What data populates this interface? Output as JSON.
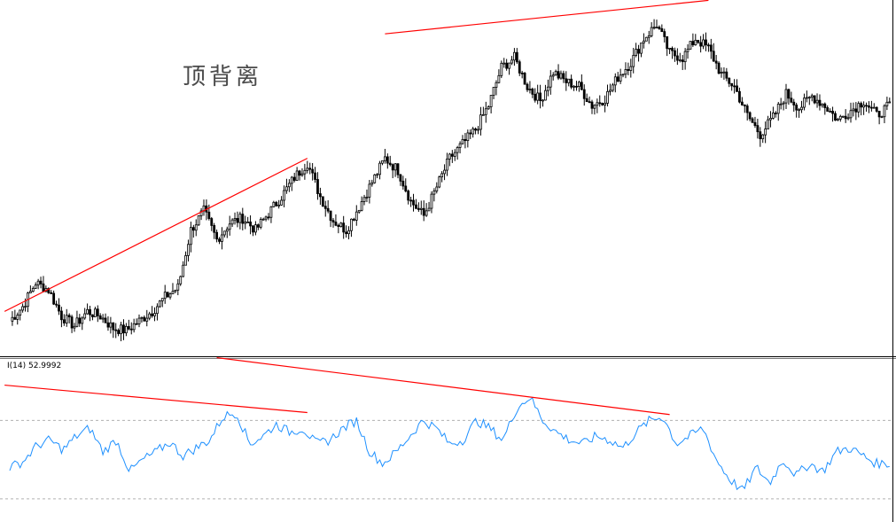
{
  "price_panel": {
    "annotation": "顶背离"
  },
  "rsi_panel": {
    "label": "I(14) 52.9992"
  },
  "colors": {
    "candle_bull_fill": "#ffffff",
    "candle_bear_fill": "#000000",
    "candle_outline": "#000000",
    "divergence_line": "#ff0000",
    "rsi_line": "#1e90ff",
    "rsi_level": "#b0b0b0",
    "separator": "#000000",
    "background": "#ffffff"
  },
  "chart_data": [
    {
      "type": "candlestick",
      "title": "顶背离",
      "price_path": [
        [
          0,
          0.04
        ],
        [
          5,
          0.1
        ],
        [
          10,
          0.2
        ],
        [
          15,
          0.17
        ],
        [
          20,
          0.06
        ],
        [
          25,
          0.02
        ],
        [
          30,
          0.08
        ],
        [
          35,
          0.06
        ],
        [
          40,
          0.01
        ],
        [
          45,
          0.0
        ],
        [
          50,
          0.04
        ],
        [
          55,
          0.08
        ],
        [
          60,
          0.14
        ],
        [
          65,
          0.18
        ],
        [
          70,
          0.42
        ],
        [
          75,
          0.5
        ],
        [
          80,
          0.38
        ],
        [
          85,
          0.45
        ],
        [
          90,
          0.47
        ],
        [
          95,
          0.42
        ],
        [
          100,
          0.49
        ],
        [
          105,
          0.56
        ],
        [
          110,
          0.64
        ],
        [
          115,
          0.7
        ],
        [
          120,
          0.56
        ],
        [
          125,
          0.46
        ],
        [
          130,
          0.42
        ],
        [
          135,
          0.52
        ],
        [
          140,
          0.62
        ],
        [
          145,
          0.72
        ],
        [
          150,
          0.67
        ],
        [
          155,
          0.54
        ],
        [
          160,
          0.48
        ],
        [
          165,
          0.6
        ],
        [
          170,
          0.72
        ],
        [
          175,
          0.78
        ],
        [
          180,
          0.84
        ],
        [
          185,
          0.94
        ],
        [
          190,
          1.1
        ],
        [
          195,
          1.14
        ],
        [
          200,
          1.02
        ],
        [
          205,
          0.96
        ],
        [
          210,
          1.08
        ],
        [
          215,
          1.04
        ],
        [
          220,
          1.02
        ],
        [
          225,
          0.94
        ],
        [
          230,
          0.97
        ],
        [
          235,
          1.06
        ],
        [
          240,
          1.12
        ],
        [
          245,
          1.22
        ],
        [
          250,
          1.28
        ],
        [
          255,
          1.16
        ],
        [
          260,
          1.14
        ],
        [
          265,
          1.22
        ],
        [
          270,
          1.18
        ],
        [
          275,
          1.07
        ],
        [
          280,
          1.02
        ],
        [
          285,
          0.9
        ],
        [
          290,
          0.82
        ],
        [
          295,
          0.89
        ],
        [
          300,
          0.99
        ],
        [
          305,
          0.93
        ],
        [
          310,
          0.98
        ],
        [
          315,
          0.94
        ],
        [
          320,
          0.88
        ],
        [
          325,
          0.92
        ],
        [
          330,
          0.96
        ],
        [
          335,
          0.9
        ],
        [
          340,
          0.94
        ]
      ],
      "trend_lines": [
        {
          "name": "price_divergence_1",
          "points": [
            [
              -2,
              0.08
            ],
            [
              115,
              0.72
            ]
          ]
        },
        {
          "name": "price_divergence_2",
          "points": [
            [
              145,
              1.24
            ],
            [
              270,
              1.38
            ]
          ]
        }
      ]
    },
    {
      "type": "line",
      "series": [
        {
          "name": "",
          "values": [
            46,
            49,
            57,
            60,
            55,
            62,
            66,
            54,
            60,
            44,
            50,
            54,
            59,
            52,
            56,
            60,
            72,
            74,
            58,
            62,
            68,
            64,
            66,
            58,
            60,
            66,
            70,
            54,
            48,
            54,
            62,
            70,
            66,
            58,
            60,
            70,
            66,
            60,
            76,
            82,
            70,
            64,
            60,
            58,
            62,
            60,
            56,
            64,
            70,
            72,
            58,
            62,
            66,
            50,
            40,
            34,
            46,
            38,
            50,
            42,
            48,
            44,
            54,
            56,
            52,
            48,
            48
          ]
        }
      ],
      "ylim": [
        20,
        100
      ],
      "levels": [
        70,
        30
      ],
      "trend_lines": [
        {
          "name": "rsi_divergence_1",
          "points": [
            [
              -2,
              88
            ],
            [
              115,
              74
            ]
          ]
        },
        {
          "name": "rsi_divergence_2",
          "points": [
            [
              80,
              102
            ],
            [
              255,
              73
            ]
          ]
        }
      ]
    }
  ]
}
